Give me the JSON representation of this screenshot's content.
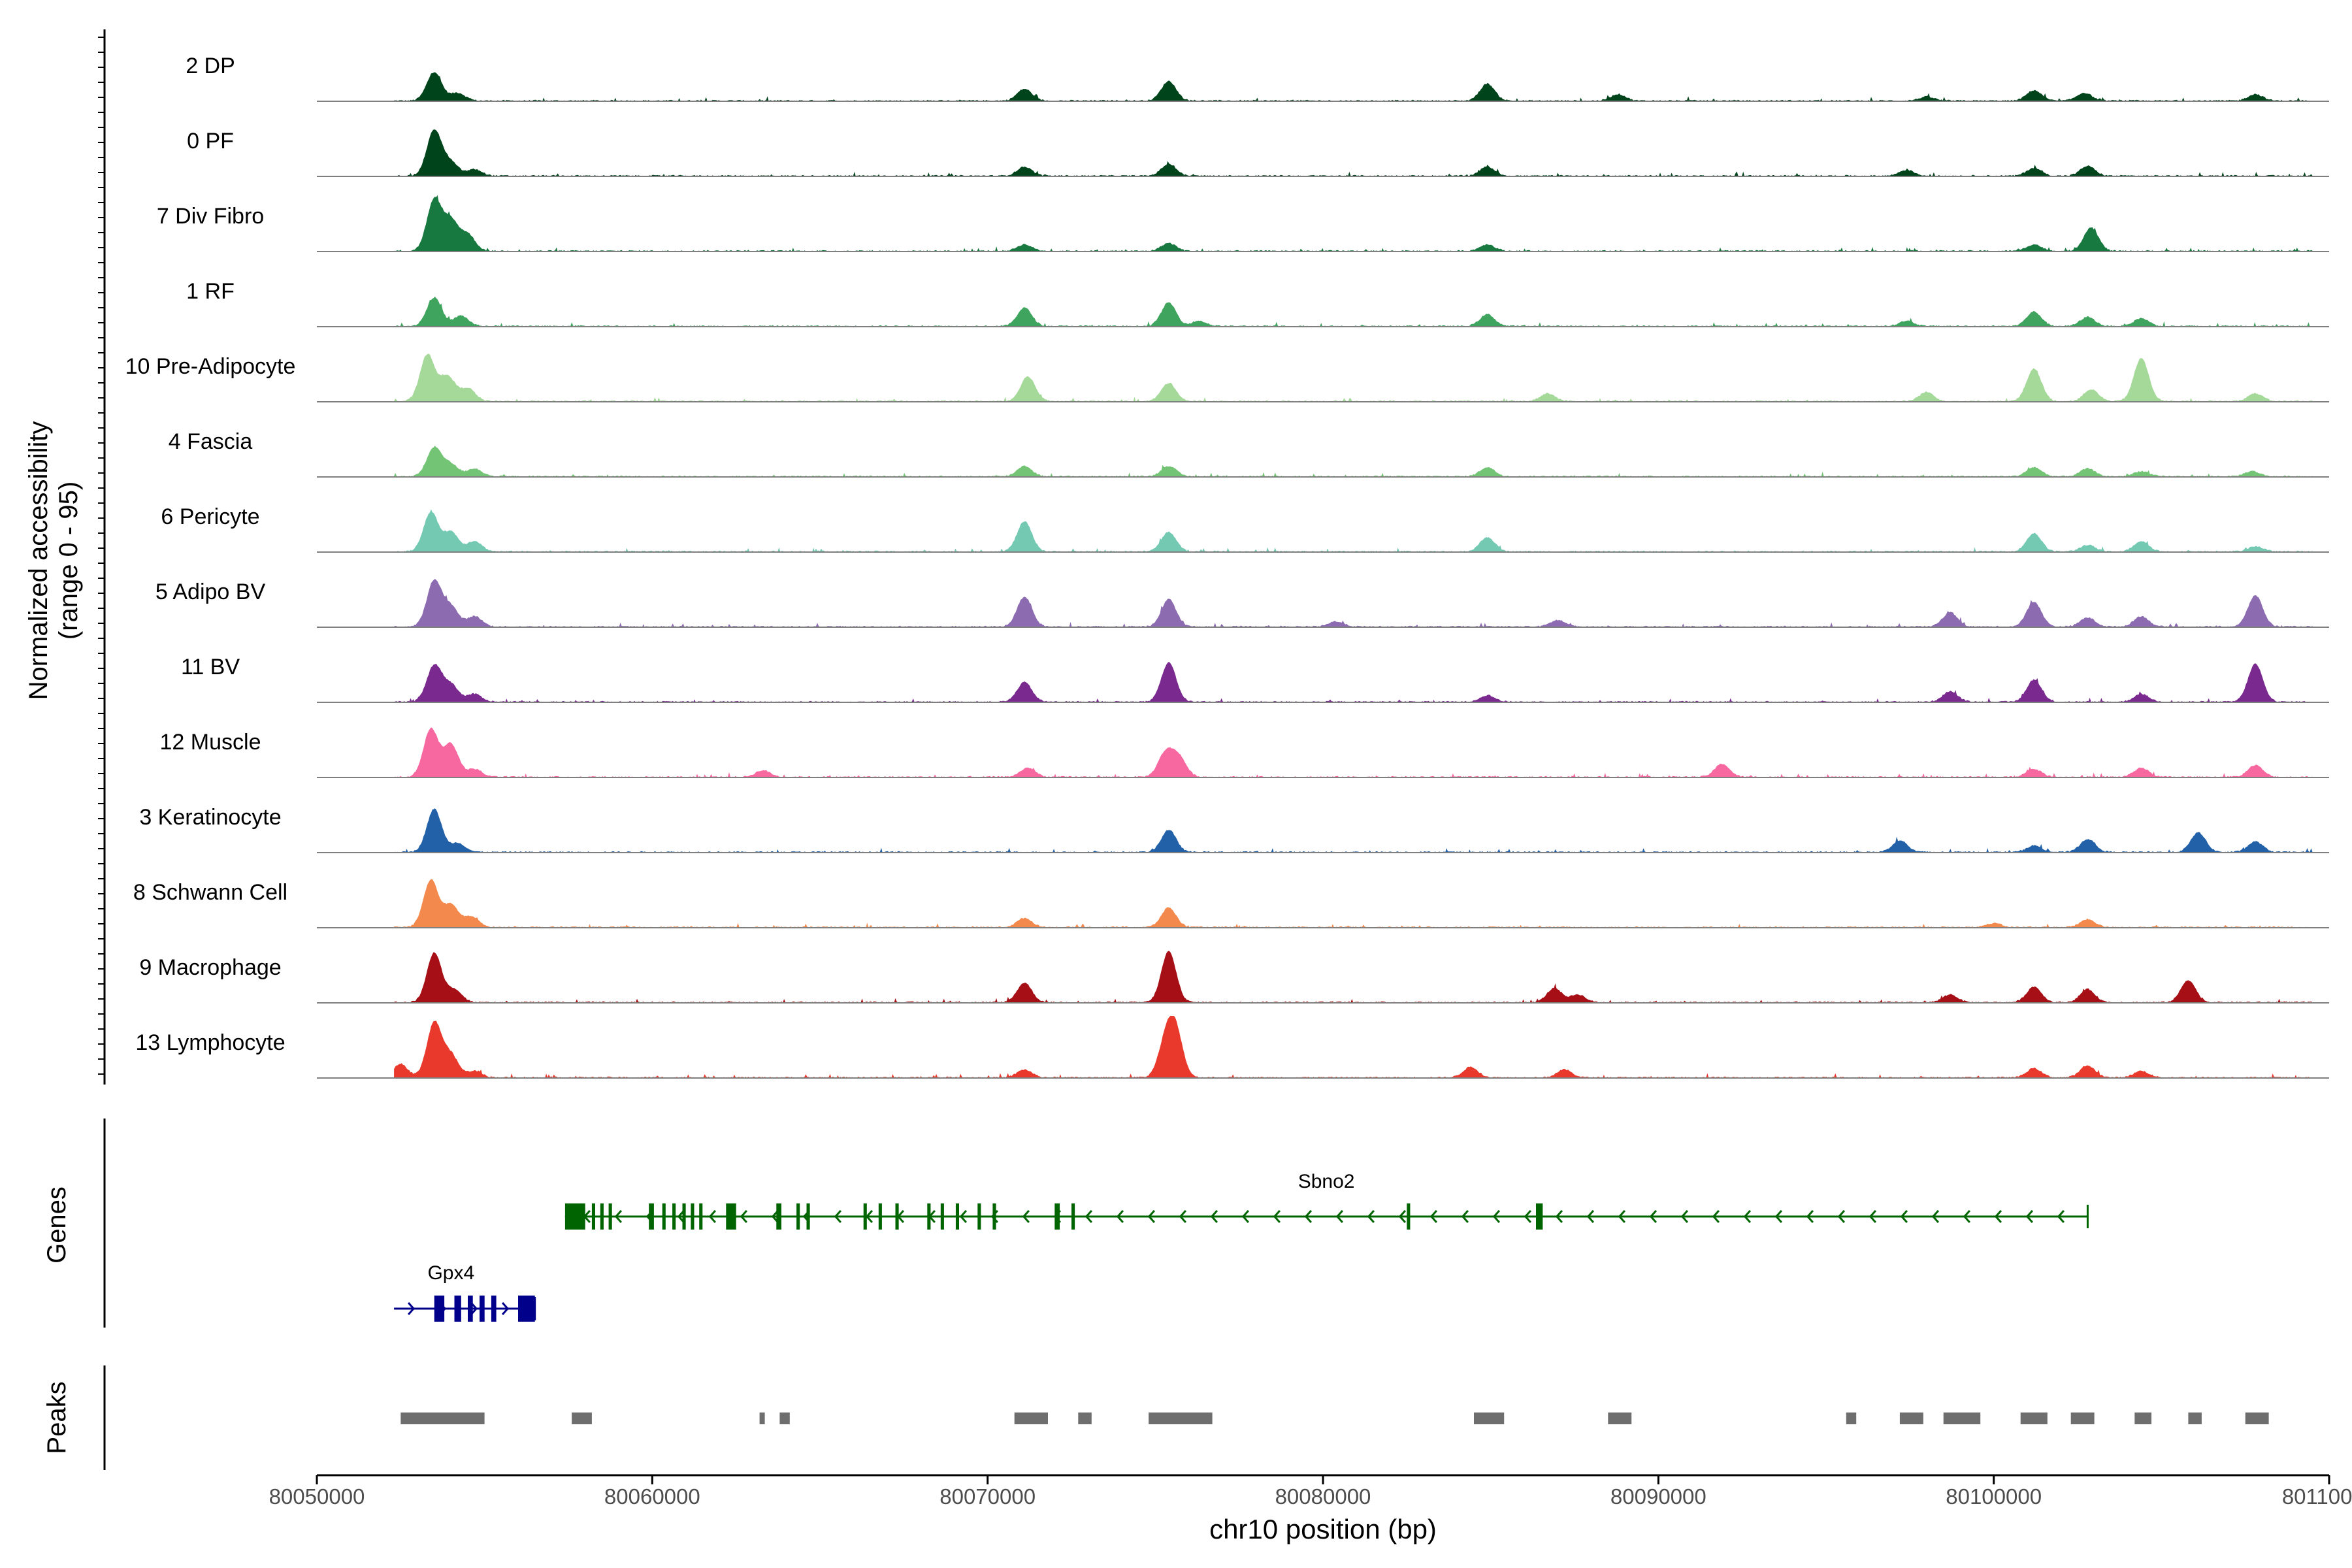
{
  "chart_data": {
    "type": "area",
    "title": "",
    "chromosome": "chr10",
    "xlabel": "chr10 position (bp)",
    "ylabel_line1": "Normalized accessibility",
    "ylabel_line2": "(range 0 - 95)",
    "y_range": [
      0,
      95
    ],
    "xlim": [
      80050000,
      80110000
    ],
    "x_ticks": [
      80050000,
      80060000,
      80070000,
      80080000,
      80090000,
      80100000,
      80110000
    ],
    "x_tick_labels": [
      "80050000",
      "80060000",
      "80070000",
      "80080000",
      "80090000",
      "80100000",
      "80110000"
    ],
    "tracks": [
      {
        "name": "2 DP",
        "color": "#00441b",
        "peaks": [
          [
            80053500,
            44
          ],
          [
            80054200,
            12
          ],
          [
            80071100,
            18
          ],
          [
            80075400,
            30
          ],
          [
            80084900,
            26
          ],
          [
            80088800,
            10
          ],
          [
            80098000,
            6
          ],
          [
            80101200,
            16
          ],
          [
            80102700,
            12
          ],
          [
            80107800,
            10
          ]
        ]
      },
      {
        "name": "0 PF",
        "color": "#00441b",
        "peaks": [
          [
            80053500,
            70
          ],
          [
            80054000,
            20
          ],
          [
            80054700,
            10
          ],
          [
            80071100,
            14
          ],
          [
            80075400,
            18
          ],
          [
            80084900,
            14
          ],
          [
            80097400,
            9
          ],
          [
            80101200,
            12
          ],
          [
            80102800,
            15
          ]
        ]
      },
      {
        "name": "7 Div Fibro",
        "color": "#17793f",
        "peaks": [
          [
            80053500,
            78
          ],
          [
            80054000,
            45
          ],
          [
            80054500,
            25
          ],
          [
            80071100,
            10
          ],
          [
            80075400,
            12
          ],
          [
            80084900,
            10
          ],
          [
            80101200,
            10
          ],
          [
            80102900,
            36
          ]
        ]
      },
      {
        "name": "1 RF",
        "color": "#3fa45e",
        "peaks": [
          [
            80053500,
            44
          ],
          [
            80054300,
            16
          ],
          [
            80071100,
            28
          ],
          [
            80075400,
            36
          ],
          [
            80076300,
            8
          ],
          [
            80084900,
            18
          ],
          [
            80097400,
            8
          ],
          [
            80101200,
            22
          ],
          [
            80102800,
            14
          ],
          [
            80104400,
            12
          ]
        ]
      },
      {
        "name": "10 Pre-Adipocyte",
        "color": "#a5d99a",
        "peaks": [
          [
            80053300,
            72
          ],
          [
            80053900,
            38
          ],
          [
            80054500,
            20
          ],
          [
            80071200,
            38
          ],
          [
            80075400,
            28
          ],
          [
            80086700,
            12
          ],
          [
            80098000,
            14
          ],
          [
            80101200,
            50
          ],
          [
            80102900,
            18
          ],
          [
            80104400,
            66
          ],
          [
            80107800,
            12
          ]
        ]
      },
      {
        "name": "4 Fascia",
        "color": "#74c476",
        "peaks": [
          [
            80053500,
            44
          ],
          [
            80054000,
            18
          ],
          [
            80054700,
            12
          ],
          [
            80071100,
            16
          ],
          [
            80075400,
            16
          ],
          [
            80084900,
            14
          ],
          [
            80101200,
            14
          ],
          [
            80102800,
            12
          ],
          [
            80104400,
            8
          ],
          [
            80107700,
            8
          ]
        ]
      },
      {
        "name": "6 Pericyte",
        "color": "#74c9b2",
        "peaks": [
          [
            80053400,
            60
          ],
          [
            80054000,
            30
          ],
          [
            80054700,
            16
          ],
          [
            80071100,
            46
          ],
          [
            80075400,
            30
          ],
          [
            80084900,
            22
          ],
          [
            80101200,
            28
          ],
          [
            80102800,
            10
          ],
          [
            80104400,
            16
          ],
          [
            80107800,
            8
          ]
        ]
      },
      {
        "name": "5 Adipo BV",
        "color": "#8c6bb1",
        "peaks": [
          [
            80053500,
            70
          ],
          [
            80054000,
            30
          ],
          [
            80054700,
            16
          ],
          [
            80071100,
            46
          ],
          [
            80075400,
            42
          ],
          [
            80080400,
            8
          ],
          [
            80087000,
            10
          ],
          [
            80098700,
            22
          ],
          [
            80101200,
            38
          ],
          [
            80102800,
            14
          ],
          [
            80104400,
            16
          ],
          [
            80107800,
            48
          ]
        ]
      },
      {
        "name": "11 BV",
        "color": "#7a2a8f",
        "peaks": [
          [
            80053500,
            56
          ],
          [
            80054000,
            26
          ],
          [
            80054700,
            12
          ],
          [
            80071100,
            30
          ],
          [
            80075400,
            60
          ],
          [
            80084900,
            10
          ],
          [
            80098700,
            16
          ],
          [
            80101200,
            34
          ],
          [
            80104400,
            12
          ],
          [
            80107800,
            58
          ]
        ]
      },
      {
        "name": "12 Muscle",
        "color": "#f768a1",
        "peaks": [
          [
            80053400,
            74
          ],
          [
            80054000,
            50
          ],
          [
            80054700,
            12
          ],
          [
            80063300,
            10
          ],
          [
            80071200,
            14
          ],
          [
            80075300,
            36
          ],
          [
            80075700,
            30
          ],
          [
            80091900,
            20
          ],
          [
            80101200,
            12
          ],
          [
            80104400,
            14
          ],
          [
            80107800,
            18
          ]
        ]
      },
      {
        "name": "3 Keratinocyte",
        "color": "#2261a7",
        "peaks": [
          [
            80053500,
            66
          ],
          [
            80054200,
            14
          ],
          [
            80075400,
            34
          ],
          [
            80097200,
            18
          ],
          [
            80101200,
            10
          ],
          [
            80102800,
            20
          ],
          [
            80106100,
            30
          ],
          [
            80107800,
            16
          ]
        ]
      },
      {
        "name": "8 Schwann Cell",
        "color": "#f4894e",
        "peaks": [
          [
            80053400,
            72
          ],
          [
            80054000,
            34
          ],
          [
            80054600,
            16
          ],
          [
            80071100,
            14
          ],
          [
            80075400,
            30
          ],
          [
            80100000,
            6
          ],
          [
            80102800,
            12
          ]
        ]
      },
      {
        "name": "9 Macrophage",
        "color": "#a50f15",
        "peaks": [
          [
            80053500,
            76
          ],
          [
            80054100,
            20
          ],
          [
            80071100,
            30
          ],
          [
            80075400,
            78
          ],
          [
            80086900,
            22
          ],
          [
            80087600,
            12
          ],
          [
            80098700,
            12
          ],
          [
            80101200,
            24
          ],
          [
            80102800,
            20
          ],
          [
            80105800,
            34
          ]
        ]
      },
      {
        "name": "13 Lymphocyte",
        "color": "#e8392c",
        "peaks": [
          [
            80052500,
            20
          ],
          [
            80053500,
            84
          ],
          [
            80054000,
            34
          ],
          [
            80054700,
            10
          ],
          [
            80071100,
            12
          ],
          [
            80075300,
            50
          ],
          [
            80075600,
            70
          ],
          [
            80084400,
            16
          ],
          [
            80087200,
            12
          ],
          [
            80101200,
            14
          ],
          [
            80102800,
            18
          ],
          [
            80104400,
            10
          ]
        ]
      }
    ],
    "genes_axis_label": "Genes",
    "genes": [
      {
        "name": "Sbno2",
        "strand": "-",
        "start": 80057400,
        "end": 80102800,
        "color": "#006400",
        "exons": [
          [
            80057400,
            80058000
          ],
          [
            80058200,
            80058300
          ],
          [
            80058450,
            80058550
          ],
          [
            80058700,
            80058800
          ],
          [
            80059900,
            80060050
          ],
          [
            80060300,
            80060400
          ],
          [
            80060600,
            80060700
          ],
          [
            80060900,
            80061000
          ],
          [
            80061150,
            80061250
          ],
          [
            80061400,
            80061500
          ],
          [
            80062200,
            80062500
          ],
          [
            80063700,
            80063850
          ],
          [
            80064300,
            80064400
          ],
          [
            80064600,
            80064700
          ],
          [
            80066300,
            80066400
          ],
          [
            80066750,
            80066850
          ],
          [
            80067250,
            80067350
          ],
          [
            80068200,
            80068300
          ],
          [
            80068600,
            80068700
          ],
          [
            80069050,
            80069150
          ],
          [
            80069700,
            80069800
          ],
          [
            80070150,
            80070250
          ],
          [
            80072000,
            80072150
          ],
          [
            80072500,
            80072600
          ],
          [
            80082500,
            80082600
          ],
          [
            80086350,
            80086550
          ]
        ]
      },
      {
        "name": "Gpx4",
        "strand": "+",
        "start": 80052300,
        "end": 80056500,
        "color": "#00008b",
        "exons": [
          [
            80053500,
            80053800
          ],
          [
            80054100,
            80054300
          ],
          [
            80054500,
            80054650
          ],
          [
            80054850,
            80055000
          ],
          [
            80055200,
            80055350
          ],
          [
            80056000,
            80056500
          ]
        ]
      }
    ],
    "peaks_axis_label": "Peaks",
    "peak_color": "#6e6e6e",
    "peak_regions": [
      [
        80052500,
        80055000
      ],
      [
        80057600,
        80058200
      ],
      [
        80063200,
        80063300
      ],
      [
        80063800,
        80064100
      ],
      [
        80070800,
        80071800
      ],
      [
        80072700,
        80073100
      ],
      [
        80074800,
        80076700
      ],
      [
        80084500,
        80085400
      ],
      [
        80088500,
        80089200
      ],
      [
        80095600,
        80095900
      ],
      [
        80097200,
        80097900
      ],
      [
        80098500,
        80099600
      ],
      [
        80100800,
        80101600
      ],
      [
        80102300,
        80103000
      ],
      [
        80104200,
        80104700
      ],
      [
        80105800,
        80106200
      ],
      [
        80107500,
        80108200
      ]
    ],
    "legend": "none",
    "grid": false
  }
}
